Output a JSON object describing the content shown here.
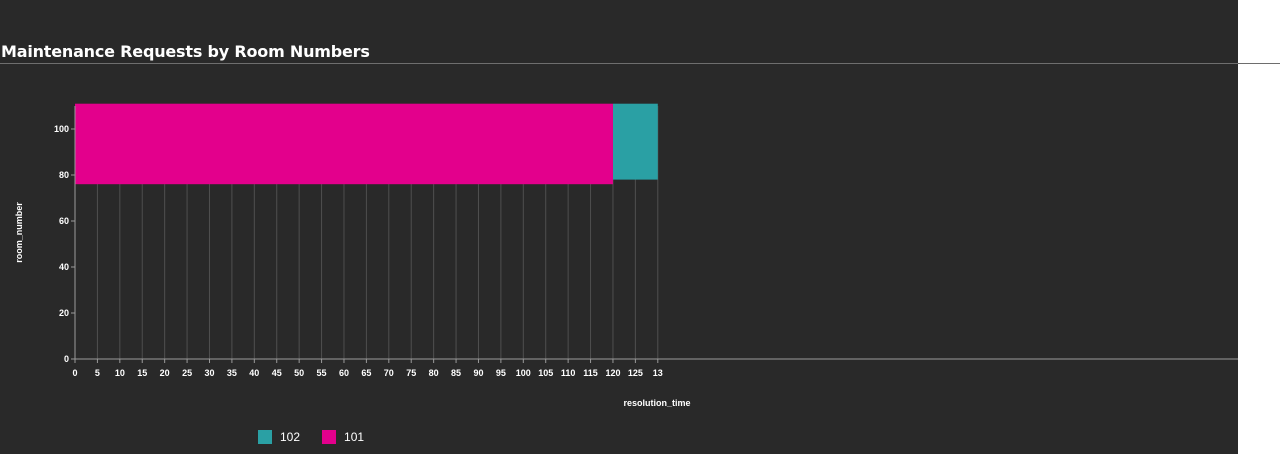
{
  "title": "Maintenance Requests by Room Numbers",
  "chart_data": {
    "type": "bar",
    "orientation": "horizontal",
    "stacked": true,
    "xlabel": "resolution_time",
    "ylabel": "room_number",
    "xlim": [
      0,
      130
    ],
    "ylim": [
      0,
      110
    ],
    "x_ticks": [
      "0",
      "5",
      "10",
      "15",
      "20",
      "25",
      "30",
      "35",
      "40",
      "45",
      "50",
      "55",
      "60",
      "65",
      "70",
      "75",
      "80",
      "85",
      "90",
      "95",
      "100",
      "105",
      "110",
      "115",
      "120",
      "125",
      "13"
    ],
    "y_ticks": [
      "0",
      "20",
      "40",
      "60",
      "80",
      "100"
    ],
    "grid": "vertical",
    "legend_position": "bottom-left",
    "series": [
      {
        "name": "102",
        "color": "#2aa0a4",
        "x_start": 120,
        "x_end": 130,
        "y_start": 78,
        "y_end": 111
      },
      {
        "name": "101",
        "color": "#e3008c",
        "x_start": 0,
        "x_end": 120,
        "y_start": 76,
        "y_end": 111
      }
    ]
  },
  "colors": {
    "background": "#292929",
    "gridline": "#4f4f4f",
    "axis": "#9a9a9a",
    "text": "#ffffff"
  }
}
